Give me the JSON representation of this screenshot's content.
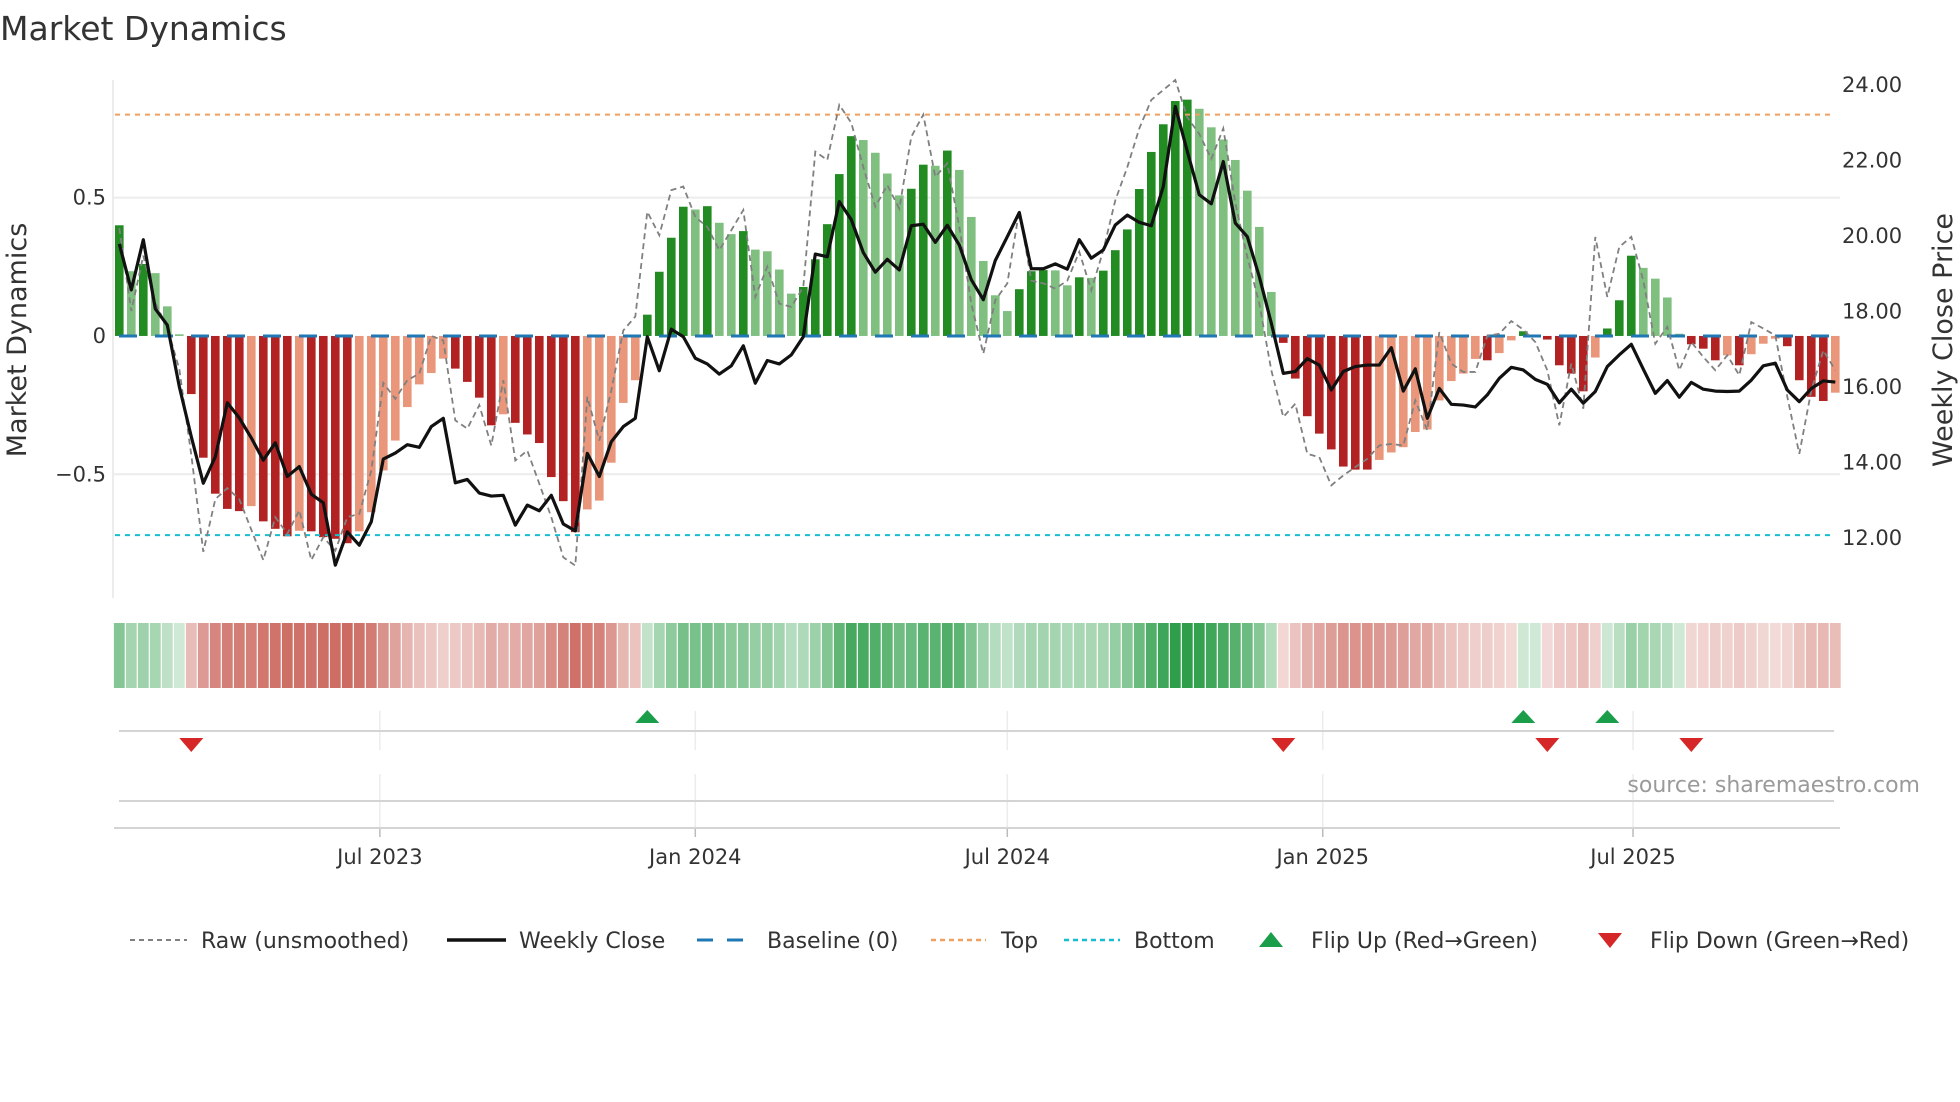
{
  "chart_data": {
    "type": "bar",
    "title": "Market Dynamics",
    "ylabel": "Market Dynamics",
    "ylabel_right": "Weekly Close Price",
    "source": "source: sharemaestro.com",
    "x_start": "2023-01-30",
    "x_step_days": 7,
    "ylim": [
      -0.947,
      0.925
    ],
    "ylim_right": [
      10.38,
      24.1
    ],
    "yticks": [
      0.5,
      0,
      -0.5
    ],
    "ytick_labels": [
      "0.5",
      "0",
      "−0.5"
    ],
    "yticks_right": [
      24,
      22,
      20,
      18,
      16,
      14,
      12
    ],
    "ytick_labels_right": [
      "24.00",
      "22.00",
      "20.00",
      "18.00",
      "16.00",
      "14.00",
      "12.00"
    ],
    "xticks": [
      "2023-07-01",
      "2024-01-01",
      "2024-07-01",
      "2025-01-01",
      "2025-07-01"
    ],
    "xtick_labels": [
      "Jul 2023",
      "Jan 2024",
      "Jul 2024",
      "Jan 2025",
      "Jul 2025"
    ],
    "grid": true,
    "levels": {
      "top": 0.8,
      "bottom": -0.72,
      "baseline": 0
    },
    "colors": {
      "green_strong": "#228b22",
      "green_weak": "#7fbf7f",
      "red_strong": "#b22222",
      "red_weak": "#e9967a",
      "baseline": "#1f77b4",
      "top": "#f0a060",
      "bottom": "#17becf",
      "raw": "#808080",
      "close": "#111111",
      "flip_up": "#1a9e4a",
      "flip_down": "#d62728"
    },
    "series": [
      {
        "name": "Market Dynamics",
        "values": [
          0.4,
          0.234,
          0.26,
          0.227,
          0.107,
          0.006,
          -0.21,
          -0.44,
          -0.57,
          -0.625,
          -0.633,
          -0.615,
          -0.67,
          -0.697,
          -0.724,
          -0.704,
          -0.706,
          -0.727,
          -0.733,
          -0.749,
          -0.706,
          -0.637,
          -0.486,
          -0.378,
          -0.257,
          -0.175,
          -0.134,
          -0.082,
          -0.118,
          -0.166,
          -0.223,
          -0.323,
          -0.283,
          -0.314,
          -0.356,
          -0.387,
          -0.51,
          -0.597,
          -0.709,
          -0.627,
          -0.595,
          -0.458,
          -0.242,
          -0.16,
          0.077,
          0.232,
          0.355,
          0.467,
          0.457,
          0.469,
          0.409,
          0.368,
          0.379,
          0.312,
          0.306,
          0.24,
          0.153,
          0.177,
          0.277,
          0.404,
          0.585,
          0.722,
          0.708,
          0.662,
          0.587,
          0.508,
          0.532,
          0.619,
          0.615,
          0.67,
          0.6,
          0.43,
          0.271,
          0.147,
          0.09,
          0.169,
          0.234,
          0.238,
          0.237,
          0.183,
          0.212,
          0.21,
          0.236,
          0.31,
          0.385,
          0.531,
          0.665,
          0.765,
          0.849,
          0.854,
          0.821,
          0.754,
          0.71,
          0.636,
          0.525,
          0.394,
          0.159,
          -0.025,
          -0.154,
          -0.29,
          -0.353,
          -0.41,
          -0.472,
          -0.483,
          -0.483,
          -0.448,
          -0.421,
          -0.402,
          -0.347,
          -0.338,
          -0.233,
          -0.163,
          -0.136,
          -0.083,
          -0.088,
          -0.062,
          -0.016,
          0.017,
          0.003,
          -0.013,
          -0.106,
          -0.136,
          -0.2,
          -0.078,
          0.027,
          0.129,
          0.29,
          0.246,
          0.207,
          0.139,
          0.008,
          -0.03,
          -0.046,
          -0.088,
          -0.07,
          -0.106,
          -0.066,
          -0.028,
          -0.01,
          -0.037,
          -0.16,
          -0.22,
          -0.235,
          -0.205
        ]
      },
      {
        "name": "Raw (unsmoothed)",
        "values": [
          0.39,
          0.09,
          0.29,
          0.12,
          0.03,
          -0.12,
          -0.43,
          -0.78,
          -0.59,
          -0.55,
          -0.59,
          -0.7,
          -0.81,
          -0.655,
          -0.715,
          -0.63,
          -0.81,
          -0.727,
          -0.776,
          -0.655,
          -0.643,
          -0.486,
          -0.17,
          -0.227,
          -0.16,
          -0.136,
          0.0,
          -0.016,
          -0.305,
          -0.335,
          -0.25,
          -0.396,
          -0.16,
          -0.45,
          -0.414,
          -0.534,
          -0.655,
          -0.8,
          -0.83,
          -0.22,
          -0.378,
          -0.197,
          0.02,
          0.07,
          0.449,
          0.364,
          0.527,
          0.54,
          0.43,
          0.394,
          0.31,
          0.382,
          0.455,
          0.141,
          0.25,
          0.117,
          0.105,
          0.177,
          0.666,
          0.636,
          0.835,
          0.77,
          0.61,
          0.467,
          0.545,
          0.46,
          0.72,
          0.8,
          0.575,
          0.624,
          0.394,
          0.117,
          -0.064,
          0.129,
          0.19,
          0.455,
          0.2,
          0.19,
          0.171,
          0.2,
          0.304,
          0.165,
          0.31,
          0.49,
          0.61,
          0.75,
          0.853,
          0.889,
          0.925,
          0.79,
          0.73,
          0.64,
          0.75,
          0.48,
          0.286,
          0.117,
          -0.124,
          -0.293,
          -0.245,
          -0.426,
          -0.438,
          -0.54,
          -0.504,
          -0.474,
          -0.444,
          -0.396,
          -0.39,
          -0.396,
          -0.233,
          -0.341,
          0.014,
          -0.1,
          -0.13,
          -0.13,
          0.0,
          0.008,
          0.054,
          0.023,
          -0.022,
          -0.124,
          -0.323,
          -0.1,
          -0.263,
          0.358,
          0.141,
          0.322,
          0.358,
          0.2,
          -0.028,
          0.033,
          -0.124,
          -0.022,
          -0.076,
          -0.124,
          -0.07,
          -0.142,
          0.05,
          0.027,
          0.002,
          -0.22,
          -0.426,
          -0.197,
          -0.052,
          -0.124
        ]
      },
      {
        "name": "Weekly Close",
        "axis": "right",
        "values": [
          19.76,
          18.54,
          19.87,
          18.04,
          17.61,
          15.98,
          14.65,
          13.42,
          14.12,
          15.55,
          15.15,
          14.62,
          14.03,
          14.49,
          13.6,
          13.86,
          13.13,
          12.9,
          11.25,
          12.13,
          11.78,
          12.4,
          14.06,
          14.22,
          14.44,
          14.37,
          14.92,
          15.14,
          13.43,
          13.52,
          13.16,
          13.08,
          13.1,
          12.31,
          12.84,
          12.69,
          13.1,
          12.34,
          12.16,
          14.21,
          13.6,
          14.52,
          14.92,
          15.14,
          17.3,
          16.4,
          17.5,
          17.3,
          16.73,
          16.58,
          16.31,
          16.53,
          17.06,
          16.07,
          16.67,
          16.58,
          16.82,
          17.3,
          19.49,
          19.42,
          20.88,
          20.4,
          19.53,
          19.01,
          19.35,
          19.07,
          20.24,
          20.28,
          19.8,
          20.25,
          19.73,
          18.81,
          18.28,
          19.32,
          19.95,
          20.59,
          19.1,
          19.1,
          19.23,
          19.09,
          19.87,
          19.38,
          19.6,
          20.26,
          20.52,
          20.33,
          20.24,
          21.28,
          23.4,
          22.21,
          21.06,
          20.82,
          21.94,
          20.31,
          19.95,
          18.89,
          17.66,
          16.33,
          16.38,
          16.72,
          16.55,
          15.89,
          16.38,
          16.51,
          16.55,
          16.55,
          17.01,
          15.86,
          16.45,
          15.14,
          15.93,
          15.51,
          15.49,
          15.44,
          15.76,
          16.2,
          16.49,
          16.42,
          16.17,
          16.04,
          15.55,
          15.91,
          15.54,
          15.85,
          16.51,
          16.82,
          17.1,
          16.44,
          15.8,
          16.14,
          15.7,
          16.09,
          15.91,
          15.86,
          15.85,
          15.86,
          16.15,
          16.53,
          16.6,
          15.89,
          15.58,
          15.93,
          16.13,
          16.1
        ]
      }
    ],
    "flips": {
      "up": [
        44,
        117,
        124
      ],
      "down": [
        6,
        97,
        119,
        131
      ]
    },
    "legend": {
      "placement": "bottom",
      "entries": [
        "Raw (unsmoothed)",
        "Weekly Close",
        "Baseline (0)",
        "Top",
        "Bottom",
        "Flip Up (Red→Green)",
        "Flip Down (Green→Red)"
      ]
    }
  }
}
